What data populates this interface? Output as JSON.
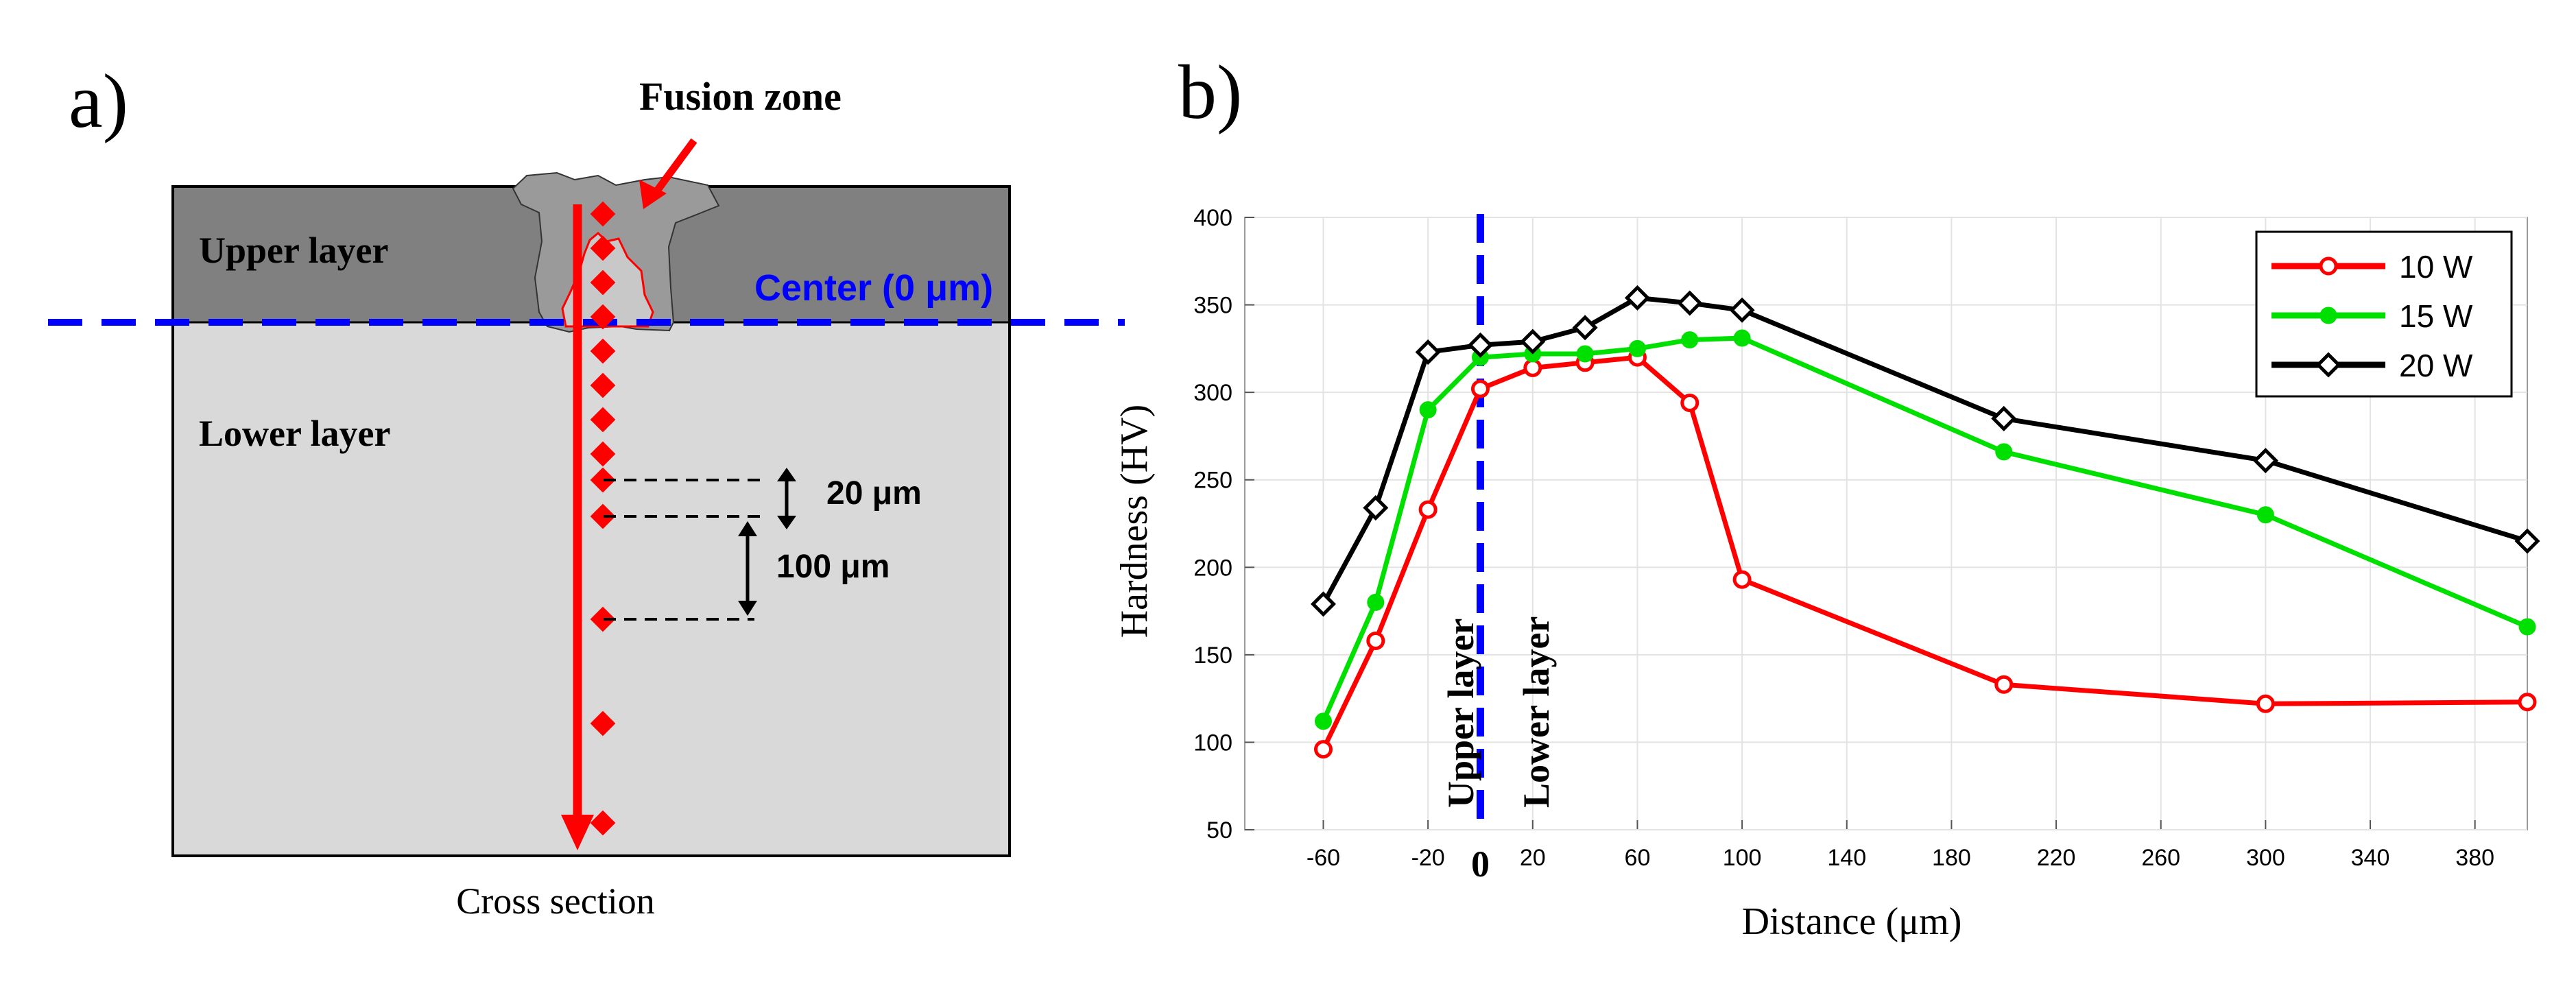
{
  "panel_a": {
    "label": "a)",
    "fusion_zone_label": "Fusion zone",
    "upper_layer_label": "Upper layer",
    "lower_layer_label": "Lower layer",
    "center_label": "Center (0 μm)",
    "spacing_small_label": "20 μm",
    "spacing_large_label": "100 μm",
    "caption": "Cross section",
    "colors": {
      "upper": "#808080",
      "lower": "#d9d9d9",
      "fusion": "#9a9a9a",
      "center_line": "#0000ff",
      "arrow": "#ff0000",
      "points": "#ff0000"
    }
  },
  "panel_b": {
    "label": "b)",
    "upper_region_label": "Upper layer",
    "lower_region_label": "Lower layer",
    "zero_label": "0",
    "colors": {
      "10 W": "#ff0000",
      "15 W": "#00e000",
      "20 W": "#000000",
      "center_line": "#0000ff"
    }
  },
  "chart_data": {
    "type": "line",
    "title": "",
    "xlabel": "Distance (μm)",
    "ylabel": "Hardness (HV)",
    "xlim": [
      -90,
      400
    ],
    "ylim": [
      50,
      400
    ],
    "xticks": [
      -60,
      -20,
      20,
      60,
      100,
      140,
      180,
      220,
      260,
      300,
      340,
      380
    ],
    "yticks": [
      50,
      100,
      150,
      200,
      250,
      300,
      350,
      400
    ],
    "grid": true,
    "legend_position": "top-right",
    "vline_x": 0,
    "series": [
      {
        "name": "10 W",
        "marker": "circle-open",
        "x": [
          -60,
          -40,
          -20,
          0,
          20,
          40,
          60,
          80,
          100,
          200,
          300,
          400
        ],
        "y": [
          96,
          158,
          233,
          302,
          314,
          317,
          320,
          294,
          193,
          133,
          122,
          123
        ]
      },
      {
        "name": "15 W",
        "marker": "circle-filled",
        "x": [
          -60,
          -40,
          -20,
          0,
          20,
          40,
          60,
          80,
          100,
          200,
          300,
          400
        ],
        "y": [
          112,
          180,
          290,
          320,
          322,
          322,
          325,
          330,
          331,
          266,
          230,
          166
        ]
      },
      {
        "name": "20 W",
        "marker": "diamond",
        "x": [
          -60,
          -40,
          -20,
          0,
          20,
          40,
          60,
          80,
          100,
          200,
          300,
          400
        ],
        "y": [
          179,
          234,
          323,
          327,
          329,
          337,
          354,
          351,
          347,
          285,
          261,
          215
        ]
      }
    ]
  }
}
